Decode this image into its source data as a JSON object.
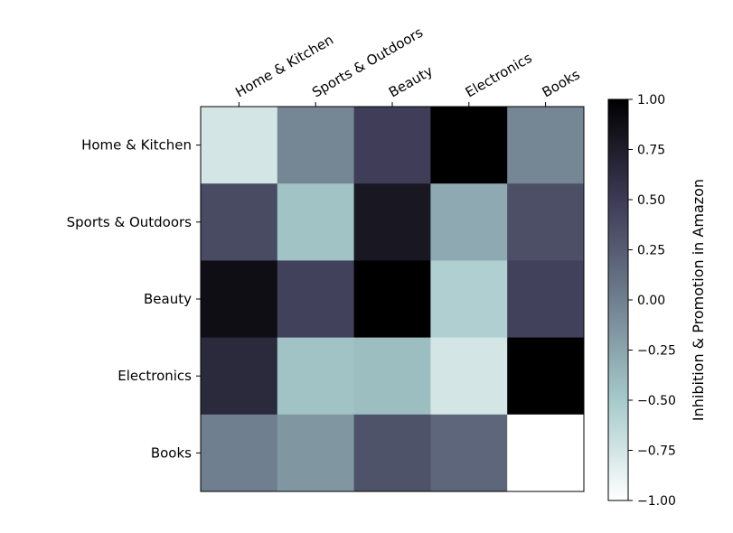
{
  "chart_data": {
    "type": "heatmap",
    "x_categories": [
      "Home & Kitchen",
      "Sports & Outdoors",
      "Beauty",
      "Electronics",
      "Books"
    ],
    "y_categories": [
      "Home & Kitchen",
      "Sports & Outdoors",
      "Beauty",
      "Electronics",
      "Books"
    ],
    "values": [
      [
        -0.75,
        -0.05,
        0.48,
        1.0,
        -0.05
      ],
      [
        0.38,
        -0.45,
        0.8,
        -0.28,
        0.35
      ],
      [
        0.88,
        0.45,
        1.0,
        -0.55,
        0.45
      ],
      [
        0.65,
        -0.45,
        -0.42,
        -0.75,
        1.0
      ],
      [
        0.0,
        -0.15,
        0.32,
        0.18,
        -1.0
      ]
    ],
    "colorbar": {
      "label": "Inhibition & Promotion in Amazon",
      "min": -1.0,
      "max": 1.0,
      "ticks": [
        "1.00",
        "0.75",
        "0.50",
        "0.25",
        "0.00",
        "−0.25",
        "−0.50",
        "−0.75",
        "−1.00"
      ],
      "colormap": "bone_r"
    },
    "x_axis_position": "top",
    "grid": false
  }
}
